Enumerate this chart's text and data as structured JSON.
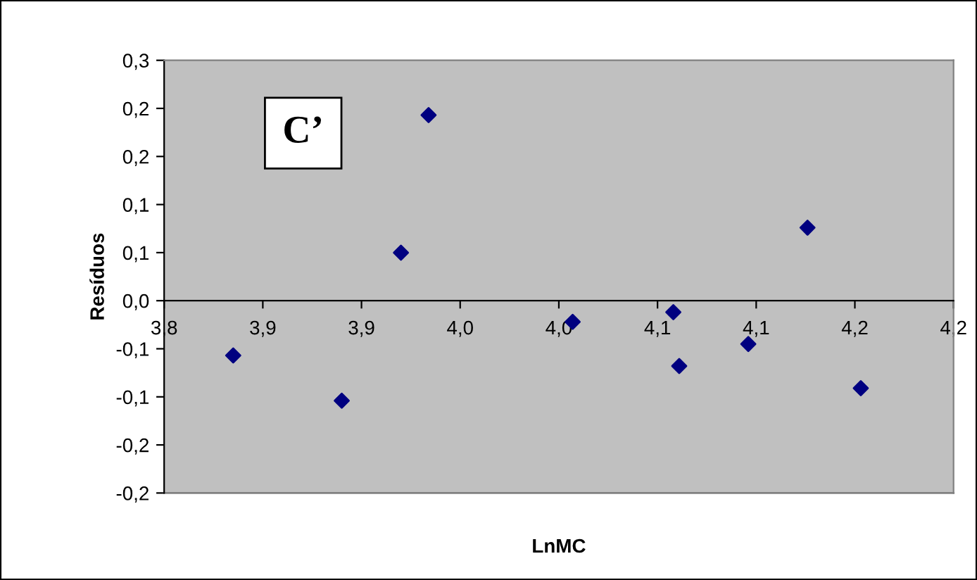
{
  "chart_data": {
    "type": "scatter",
    "xlabel": "LnMC",
    "ylabel": "Resíduos",
    "annotations": [
      "C’"
    ],
    "x": [
      3.835,
      3.89,
      3.92,
      3.934,
      4.007,
      4.058,
      4.061,
      4.096,
      4.126,
      4.153
    ],
    "series": [
      {
        "color": "#000080",
        "values": [
          -0.057,
          -0.104,
          0.05,
          0.193,
          -0.022,
          -0.012,
          -0.068,
          -0.045,
          0.076,
          -0.091
        ]
      }
    ],
    "marker": "diamond",
    "grid": false,
    "xlim": [
      3.8,
      4.2
    ],
    "xticks": [
      {
        "value": 3.8,
        "label": "3,8"
      },
      {
        "value": 3.85,
        "label": "3,9"
      },
      {
        "value": 3.9,
        "label": "3,9"
      },
      {
        "value": 3.95,
        "label": "4,0"
      },
      {
        "value": 4.0,
        "label": "4,0"
      },
      {
        "value": 4.05,
        "label": "4,1"
      },
      {
        "value": 4.1,
        "label": "4,1"
      },
      {
        "value": 4.15,
        "label": "4,2"
      },
      {
        "value": 4.2,
        "label": "4,2"
      }
    ],
    "ylim": [
      -0.2,
      0.25
    ],
    "yticks": [
      {
        "value": -0.2,
        "label": "-0,2"
      },
      {
        "value": -0.15,
        "label": "-0,2"
      },
      {
        "value": -0.1,
        "label": "-0,1"
      },
      {
        "value": -0.05,
        "label": "-0,1"
      },
      {
        "value": 0,
        "label": "0,0"
      },
      {
        "value": 0.05,
        "label": "0,1"
      },
      {
        "value": 0.1,
        "label": "0,1"
      },
      {
        "value": 0.15,
        "label": "0,2"
      },
      {
        "value": 0.2,
        "label": "0,2"
      },
      {
        "value": 0.25,
        "label": "0,3"
      }
    ]
  }
}
